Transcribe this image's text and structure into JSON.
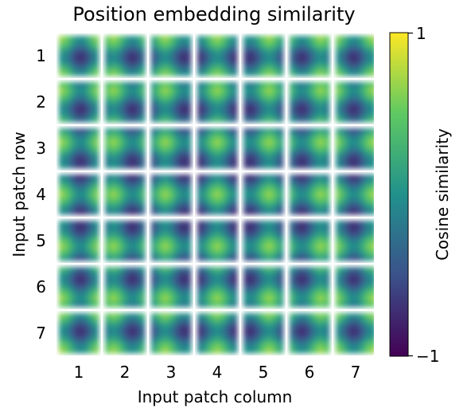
{
  "chart_data": {
    "type": "heatmap",
    "title": "Position embedding similarity",
    "xlabel": "Input patch column",
    "ylabel": "Input patch row",
    "x_ticks": [
      "1",
      "2",
      "3",
      "4",
      "5",
      "6",
      "7"
    ],
    "y_ticks": [
      "1",
      "2",
      "3",
      "4",
      "5",
      "6",
      "7"
    ],
    "grid_rows": 7,
    "grid_cols": 7,
    "value_range": [
      -1,
      1
    ],
    "colormap": "viridis",
    "colorbar": {
      "label": "Cosine similarity",
      "ticks": [
        1,
        -1
      ],
      "tick_labels": [
        "1",
        "−1"
      ],
      "colors": [
        "#440154",
        "#3b528b",
        "#21918c",
        "#5ec962",
        "#fde725"
      ]
    },
    "description_of_cells": "Each tile (r,c) is a 7x7 map of cosine similarity between the position embedding of patch (r,c) and all other patches; similarity peaks at row r and column c."
  }
}
